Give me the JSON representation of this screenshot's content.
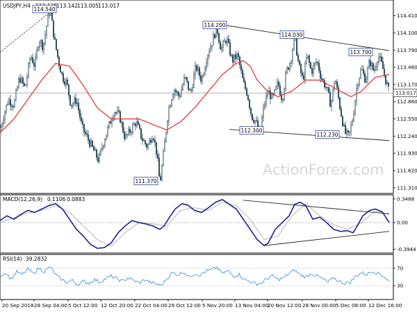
{
  "chart_data": [
    {
      "type": "candlestick",
      "header": {
        "symbol": "USDJPY,H4",
        "ohlc": [
          "113.128",
          "113.142",
          "113.005",
          "113.017"
        ]
      },
      "y_ticks": [
        "114.410",
        "114.100",
        "113.790",
        "113.480",
        "113.170",
        "112.860",
        "112.550",
        "112.240",
        "111.930",
        "111.620",
        "111.310"
      ],
      "y_tick_values": [
        114.41,
        114.1,
        113.79,
        113.48,
        113.17,
        112.86,
        112.55,
        112.24,
        111.93,
        111.62,
        111.31
      ],
      "ylim": [
        111.22,
        114.68
      ],
      "last_price": "113.017",
      "last_price_value": 113.017,
      "x_ticks": [
        "20 Sep 2018",
        "28 Sep 04:00",
        "5 Oct 12:00",
        "12 Oct 20:00",
        "22 Oct 04:00",
        "29 Oct 12:00",
        "5 Nov 20:00",
        "13 Nov 04:00",
        "20 Nov 12:00",
        "28 Nov 00:00",
        "5 Dec 08:00",
        "12 Dec 16:00"
      ],
      "callouts": [
        "114.540",
        "114.200",
        "114.030",
        "113.700",
        "112.300",
        "112.230",
        "111.370"
      ],
      "close_path": [
        [
          0,
          112.35
        ],
        [
          6,
          112.65
        ],
        [
          12,
          112.9
        ],
        [
          20,
          112.8
        ],
        [
          28,
          113.3
        ],
        [
          36,
          113.1
        ],
        [
          44,
          113.7
        ],
        [
          50,
          113.5
        ],
        [
          56,
          114.0
        ],
        [
          62,
          113.85
        ],
        [
          68,
          114.3
        ],
        [
          72,
          114.54
        ],
        [
          78,
          114.0
        ],
        [
          84,
          113.6
        ],
        [
          90,
          113.3
        ],
        [
          96,
          113.2
        ],
        [
          102,
          112.8
        ],
        [
          110,
          112.9
        ],
        [
          118,
          112.4
        ],
        [
          126,
          112.2
        ],
        [
          134,
          112.0
        ],
        [
          142,
          111.8
        ],
        [
          148,
          112.1
        ],
        [
          156,
          112.4
        ],
        [
          164,
          112.7
        ],
        [
          172,
          112.6
        ],
        [
          180,
          112.2
        ],
        [
          188,
          112.35
        ],
        [
          196,
          112.5
        ],
        [
          204,
          112.2
        ],
        [
          212,
          112.05
        ],
        [
          220,
          112.3
        ],
        [
          226,
          111.9
        ],
        [
          230,
          111.37
        ],
        [
          236,
          112.0
        ],
        [
          242,
          112.7
        ],
        [
          250,
          113.1
        ],
        [
          258,
          112.95
        ],
        [
          266,
          113.3
        ],
        [
          274,
          113.0
        ],
        [
          282,
          113.5
        ],
        [
          290,
          113.25
        ],
        [
          298,
          113.7
        ],
        [
          304,
          113.9
        ],
        [
          312,
          114.2
        ],
        [
          318,
          113.8
        ],
        [
          326,
          114.0
        ],
        [
          334,
          113.6
        ],
        [
          342,
          113.7
        ],
        [
          350,
          113.2
        ],
        [
          356,
          113.0
        ],
        [
          362,
          112.6
        ],
        [
          368,
          112.5
        ],
        [
          374,
          112.3
        ],
        [
          380,
          112.8
        ],
        [
          386,
          113.05
        ],
        [
          392,
          112.9
        ],
        [
          400,
          113.2
        ],
        [
          406,
          112.9
        ],
        [
          412,
          113.4
        ],
        [
          418,
          113.6
        ],
        [
          424,
          114.03
        ],
        [
          430,
          113.5
        ],
        [
          436,
          113.25
        ],
        [
          442,
          113.7
        ],
        [
          448,
          113.4
        ],
        [
          456,
          113.6
        ],
        [
          462,
          113.3
        ],
        [
          470,
          113.1
        ],
        [
          476,
          112.8
        ],
        [
          482,
          113.3
        ],
        [
          490,
          112.7
        ],
        [
          496,
          112.3
        ],
        [
          502,
          112.23
        ],
        [
          508,
          112.6
        ],
        [
          514,
          113.2
        ],
        [
          520,
          113.45
        ],
        [
          526,
          113.25
        ],
        [
          532,
          113.6
        ],
        [
          538,
          113.4
        ],
        [
          544,
          113.7
        ],
        [
          550,
          113.5
        ],
        [
          556,
          113.2
        ],
        [
          560,
          113.017
        ]
      ],
      "moving_average": [
        [
          0,
          112.3
        ],
        [
          20,
          112.55
        ],
        [
          40,
          112.9
        ],
        [
          60,
          113.25
        ],
        [
          80,
          113.55
        ],
        [
          100,
          113.5
        ],
        [
          120,
          113.15
        ],
        [
          140,
          112.75
        ],
        [
          160,
          112.55
        ],
        [
          180,
          112.55
        ],
        [
          200,
          112.55
        ],
        [
          220,
          112.45
        ],
        [
          240,
          112.35
        ],
        [
          260,
          112.5
        ],
        [
          280,
          112.75
        ],
        [
          300,
          113.05
        ],
        [
          320,
          113.35
        ],
        [
          340,
          113.55
        ],
        [
          350,
          113.6
        ],
        [
          360,
          113.5
        ],
        [
          370,
          113.25
        ],
        [
          385,
          113.05
        ],
        [
          400,
          112.95
        ],
        [
          420,
          113.05
        ],
        [
          440,
          113.25
        ],
        [
          460,
          113.25
        ],
        [
          475,
          113.15
        ],
        [
          490,
          113.05
        ],
        [
          505,
          112.95
        ],
        [
          520,
          113.05
        ],
        [
          540,
          113.3
        ],
        [
          560,
          113.35
        ]
      ],
      "trendlines": [
        {
          "from": [
            0,
            113.75
          ],
          "to": [
            75,
            114.5
          ],
          "style": "dotted"
        },
        {
          "from": [
            312,
            114.26
          ],
          "to": [
            560,
            113.78
          ],
          "style": "solid"
        },
        {
          "from": [
            330,
            112.36
          ],
          "to": [
            560,
            112.16
          ],
          "style": "solid"
        }
      ]
    },
    {
      "type": "line",
      "header": {
        "name": "MACD(12,26,9)",
        "values": [
          "0.1106",
          "0.0883"
        ]
      },
      "y_ticks": [
        "0.3488",
        "0.00",
        "-0.3944"
      ],
      "y_tick_values": [
        0.3488,
        0.0,
        -0.3944
      ],
      "ylim": [
        -0.44,
        0.4
      ],
      "macd": [
        [
          0,
          0.03
        ],
        [
          10,
          0.1
        ],
        [
          20,
          0.05
        ],
        [
          30,
          0.12
        ],
        [
          40,
          0.18
        ],
        [
          50,
          0.15
        ],
        [
          60,
          0.2
        ],
        [
          70,
          0.25
        ],
        [
          80,
          0.28
        ],
        [
          90,
          0.2
        ],
        [
          100,
          0.05
        ],
        [
          110,
          -0.1
        ],
        [
          120,
          -0.2
        ],
        [
          130,
          -0.32
        ],
        [
          140,
          -0.38
        ],
        [
          150,
          -0.37
        ],
        [
          160,
          -0.3
        ],
        [
          170,
          -0.15
        ],
        [
          180,
          -0.05
        ],
        [
          190,
          0.03
        ],
        [
          200,
          0.0
        ],
        [
          210,
          -0.02
        ],
        [
          220,
          -0.05
        ],
        [
          230,
          -0.1
        ],
        [
          236,
          -0.05
        ],
        [
          244,
          0.08
        ],
        [
          252,
          0.2
        ],
        [
          262,
          0.28
        ],
        [
          270,
          0.26
        ],
        [
          280,
          0.18
        ],
        [
          290,
          0.15
        ],
        [
          300,
          0.22
        ],
        [
          310,
          0.3
        ],
        [
          320,
          0.34
        ],
        [
          330,
          0.27
        ],
        [
          340,
          0.2
        ],
        [
          350,
          0.05
        ],
        [
          360,
          -0.1
        ],
        [
          370,
          -0.25
        ],
        [
          380,
          -0.34
        ],
        [
          386,
          -0.3
        ],
        [
          396,
          -0.1
        ],
        [
          406,
          0.0
        ],
        [
          416,
          0.1
        ],
        [
          424,
          0.27
        ],
        [
          432,
          0.3
        ],
        [
          440,
          0.25
        ],
        [
          450,
          0.05
        ],
        [
          460,
          0.08
        ],
        [
          470,
          0.0
        ],
        [
          480,
          -0.1
        ],
        [
          490,
          -0.13
        ],
        [
          500,
          -0.12
        ],
        [
          508,
          -0.15
        ],
        [
          514,
          -0.05
        ],
        [
          522,
          0.1
        ],
        [
          532,
          0.18
        ],
        [
          540,
          0.2
        ],
        [
          550,
          0.16
        ],
        [
          560,
          0.0
        ]
      ],
      "signal": [
        [
          0,
          0.0
        ],
        [
          20,
          0.07
        ],
        [
          40,
          0.14
        ],
        [
          60,
          0.18
        ],
        [
          80,
          0.25
        ],
        [
          100,
          0.15
        ],
        [
          120,
          -0.05
        ],
        [
          140,
          -0.25
        ],
        [
          160,
          -0.35
        ],
        [
          180,
          -0.15
        ],
        [
          200,
          0.0
        ],
        [
          220,
          -0.02
        ],
        [
          240,
          -0.05
        ],
        [
          260,
          0.18
        ],
        [
          280,
          0.22
        ],
        [
          300,
          0.18
        ],
        [
          320,
          0.3
        ],
        [
          340,
          0.25
        ],
        [
          360,
          0.05
        ],
        [
          380,
          -0.25
        ],
        [
          400,
          -0.2
        ],
        [
          420,
          0.1
        ],
        [
          440,
          0.28
        ],
        [
          460,
          0.1
        ],
        [
          480,
          -0.03
        ],
        [
          500,
          -0.1
        ],
        [
          520,
          0.0
        ],
        [
          540,
          0.17
        ],
        [
          560,
          0.12
        ]
      ],
      "trendlines": [
        {
          "from": [
            350,
            0.33
          ],
          "to": [
            560,
            0.13
          ]
        },
        {
          "from": [
            380,
            -0.34
          ],
          "to": [
            560,
            -0.13
          ]
        }
      ]
    },
    {
      "type": "line",
      "header": {
        "name": "RSI(14)",
        "values": [
          "39.2832"
        ]
      },
      "y_ticks": [
        "70",
        "30"
      ],
      "y_tick_values": [
        70,
        30
      ],
      "ylim": [
        0,
        100
      ],
      "rsi": [
        [
          0,
          52
        ],
        [
          8,
          60
        ],
        [
          16,
          45
        ],
        [
          24,
          62
        ],
        [
          32,
          55
        ],
        [
          40,
          68
        ],
        [
          48,
          58
        ],
        [
          56,
          70
        ],
        [
          64,
          62
        ],
        [
          72,
          74
        ],
        [
          80,
          55
        ],
        [
          88,
          45
        ],
        [
          96,
          38
        ],
        [
          104,
          42
        ],
        [
          112,
          33
        ],
        [
          120,
          40
        ],
        [
          128,
          36
        ],
        [
          136,
          44
        ],
        [
          144,
          38
        ],
        [
          152,
          46
        ],
        [
          160,
          52
        ],
        [
          168,
          46
        ],
        [
          176,
          40
        ],
        [
          184,
          48
        ],
        [
          192,
          42
        ],
        [
          200,
          36
        ],
        [
          208,
          44
        ],
        [
          216,
          38
        ],
        [
          224,
          34
        ],
        [
          232,
          31
        ],
        [
          240,
          46
        ],
        [
          248,
          60
        ],
        [
          256,
          55
        ],
        [
          264,
          62
        ],
        [
          272,
          50
        ],
        [
          280,
          58
        ],
        [
          288,
          54
        ],
        [
          296,
          63
        ],
        [
          304,
          66
        ],
        [
          312,
          72
        ],
        [
          320,
          58
        ],
        [
          328,
          64
        ],
        [
          336,
          52
        ],
        [
          344,
          56
        ],
        [
          352,
          44
        ],
        [
          360,
          40
        ],
        [
          368,
          34
        ],
        [
          376,
          36
        ],
        [
          384,
          46
        ],
        [
          392,
          52
        ],
        [
          400,
          44
        ],
        [
          408,
          48
        ],
        [
          416,
          58
        ],
        [
          424,
          66
        ],
        [
          432,
          55
        ],
        [
          440,
          50
        ],
        [
          448,
          58
        ],
        [
          456,
          52
        ],
        [
          464,
          46
        ],
        [
          472,
          38
        ],
        [
          480,
          48
        ],
        [
          488,
          40
        ],
        [
          496,
          36
        ],
        [
          504,
          38
        ],
        [
          512,
          52
        ],
        [
          520,
          60
        ],
        [
          528,
          56
        ],
        [
          536,
          64
        ],
        [
          544,
          58
        ],
        [
          552,
          52
        ],
        [
          560,
          39
        ]
      ]
    }
  ],
  "watermark": "ActionForex.com"
}
